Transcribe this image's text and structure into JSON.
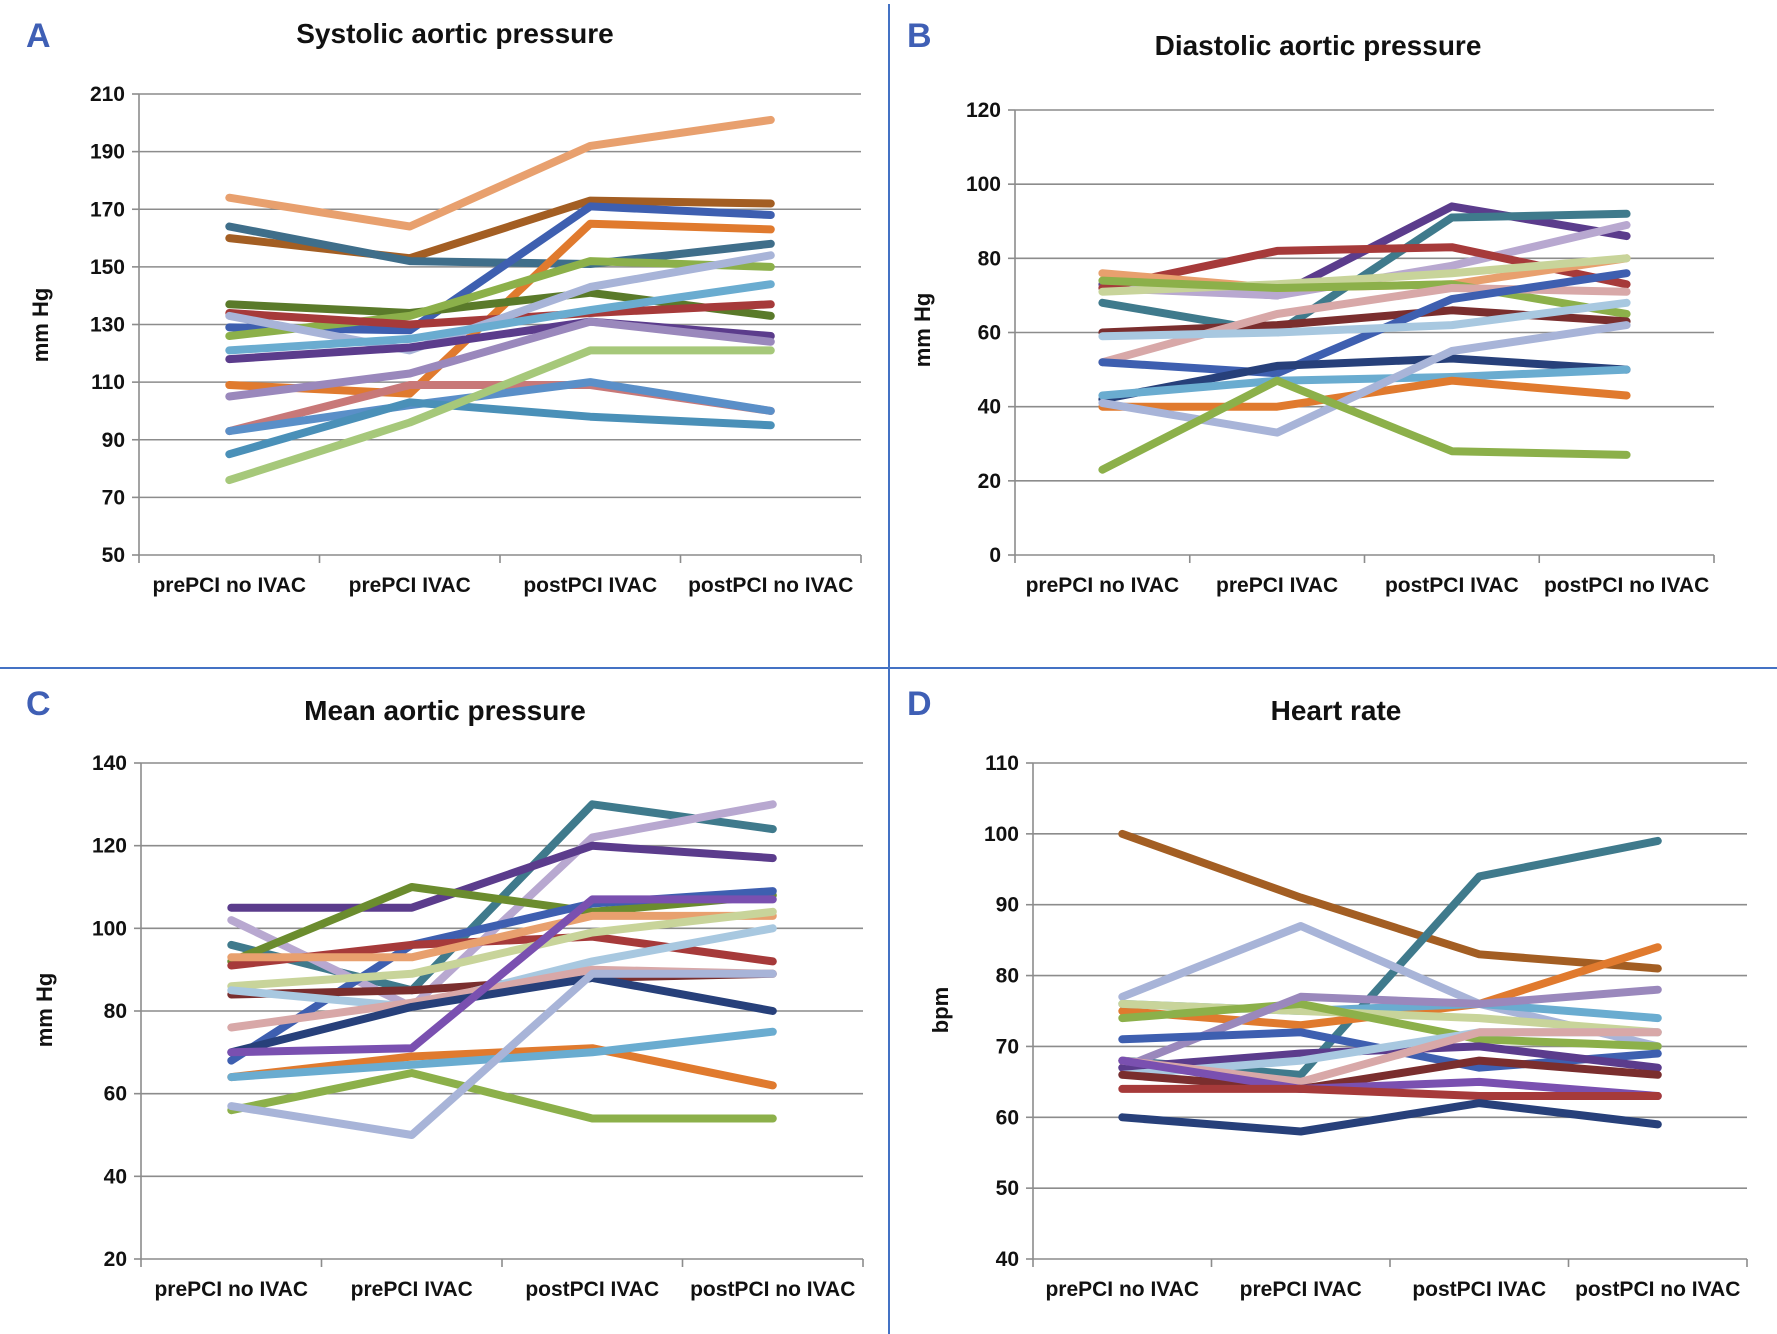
{
  "chart_data": [
    {
      "type": "line",
      "panel": "A",
      "title": "Systolic aortic pressure",
      "ylabel": "mm Hg",
      "xlabel": "",
      "categories": [
        "prePCI no IVAC",
        "prePCI IVAC",
        "postPCI IVAC",
        "postPCI no IVAC"
      ],
      "ylim": [
        50,
        210
      ],
      "yticks": [
        50,
        70,
        90,
        110,
        130,
        150,
        170,
        190,
        210
      ],
      "grid": true,
      "series": [
        {
          "color": "#e8a06e",
          "values": [
            174,
            164,
            192,
            201
          ]
        },
        {
          "color": "#a35e23",
          "values": [
            160,
            153,
            173,
            172
          ]
        },
        {
          "color": "#3f6e8a",
          "values": [
            164,
            152,
            151,
            158
          ]
        },
        {
          "color": "#3e5fb0",
          "values": [
            129,
            128,
            171,
            168
          ]
        },
        {
          "color": "#e07a2e",
          "values": [
            109,
            106,
            165,
            163
          ]
        },
        {
          "color": "#5a7a2a",
          "values": [
            137,
            134,
            141,
            133
          ]
        },
        {
          "color": "#8cb04a",
          "values": [
            126,
            133,
            152,
            150
          ]
        },
        {
          "color": "#a63a3a",
          "values": [
            134,
            130,
            134,
            137
          ]
        },
        {
          "color": "#a8b4d8",
          "values": [
            133,
            121,
            143,
            154
          ]
        },
        {
          "color": "#6aacd0",
          "values": [
            121,
            125,
            135,
            144
          ]
        },
        {
          "color": "#5b3c8c",
          "values": [
            118,
            122,
            131,
            126
          ]
        },
        {
          "color": "#9a88bc",
          "values": [
            105,
            113,
            131,
            124
          ]
        },
        {
          "color": "#c87878",
          "values": [
            93,
            109,
            109,
            100
          ]
        },
        {
          "color": "#5a8fc8",
          "values": [
            93,
            102,
            110,
            100
          ]
        },
        {
          "color": "#4a90b8",
          "values": [
            85,
            103,
            98,
            95
          ]
        },
        {
          "color": "#a6c87a",
          "values": [
            76,
            96,
            121,
            121
          ]
        }
      ]
    },
    {
      "type": "line",
      "panel": "B",
      "title": "Diastolic aortic pressure",
      "ylabel": "mm Hg",
      "xlabel": "",
      "categories": [
        "prePCI no IVAC",
        "prePCI IVAC",
        "postPCI IVAC",
        "postPCI no IVAC"
      ],
      "ylim": [
        0,
        120
      ],
      "yticks": [
        0,
        20,
        40,
        60,
        80,
        100,
        120
      ],
      "grid": true,
      "series": [
        {
          "color": "#5b3c8c",
          "values": [
            73,
            70,
            94,
            86
          ]
        },
        {
          "color": "#3f7a8c",
          "values": [
            68,
            60,
            91,
            92
          ]
        },
        {
          "color": "#b8a8d0",
          "values": [
            72,
            70,
            78,
            89
          ]
        },
        {
          "color": "#a63a3a",
          "values": [
            72,
            82,
            83,
            73
          ]
        },
        {
          "color": "#e8a06e",
          "values": [
            76,
            72,
            73,
            80
          ]
        },
        {
          "color": "#c8d49a",
          "values": [
            71,
            73,
            76,
            80
          ]
        },
        {
          "color": "#8cb04a",
          "values": [
            74,
            72,
            73,
            65
          ]
        },
        {
          "color": "#7a2e2e",
          "values": [
            60,
            62,
            66,
            63
          ]
        },
        {
          "color": "#d8a8a8",
          "values": [
            52,
            65,
            72,
            71
          ]
        },
        {
          "color": "#3e5fb0",
          "values": [
            52,
            49,
            69,
            76
          ]
        },
        {
          "color": "#a8c8e0",
          "values": [
            59,
            60,
            62,
            68
          ]
        },
        {
          "color": "#27407a",
          "values": [
            42,
            51,
            53,
            50
          ]
        },
        {
          "color": "#6aacd0",
          "values": [
            43,
            47,
            48,
            50
          ]
        },
        {
          "color": "#e07a2e",
          "values": [
            40,
            40,
            47,
            43
          ]
        },
        {
          "color": "#a8b4d8",
          "values": [
            41,
            33,
            55,
            62
          ]
        },
        {
          "color": "#8cb04a",
          "values": [
            23,
            47,
            28,
            27
          ]
        }
      ]
    },
    {
      "type": "line",
      "panel": "C",
      "title": "Mean aortic pressure",
      "ylabel": "mm Hg",
      "xlabel": "",
      "categories": [
        "prePCI no IVAC",
        "prePCI IVAC",
        "postPCI IVAC",
        "postPCI no IVAC"
      ],
      "ylim": [
        20,
        140
      ],
      "yticks": [
        20,
        40,
        60,
        80,
        100,
        120,
        140
      ],
      "grid": true,
      "series": [
        {
          "color": "#3f7a8c",
          "values": [
            96,
            85,
            130,
            124
          ]
        },
        {
          "color": "#b8a8d0",
          "values": [
            102,
            81,
            122,
            130
          ]
        },
        {
          "color": "#5b3c8c",
          "values": [
            105,
            105,
            120,
            117
          ]
        },
        {
          "color": "#6b8c2e",
          "values": [
            92,
            110,
            104,
            108
          ]
        },
        {
          "color": "#3e5fb0",
          "values": [
            68,
            96,
            106,
            109
          ]
        },
        {
          "color": "#a63a3a",
          "values": [
            91,
            96,
            98,
            92
          ]
        },
        {
          "color": "#e8a06e",
          "values": [
            93,
            93,
            103,
            103
          ]
        },
        {
          "color": "#c8d49a",
          "values": [
            86,
            89,
            99,
            104
          ]
        },
        {
          "color": "#7a2e2e",
          "values": [
            84,
            85,
            88,
            89
          ]
        },
        {
          "color": "#a8c8e0",
          "values": [
            85,
            81,
            92,
            100
          ]
        },
        {
          "color": "#d8a8a8",
          "values": [
            76,
            82,
            90,
            89
          ]
        },
        {
          "color": "#27407a",
          "values": [
            70,
            81,
            88,
            80
          ]
        },
        {
          "color": "#7a50b0",
          "values": [
            70,
            71,
            107,
            107
          ]
        },
        {
          "color": "#e07a2e",
          "values": [
            64,
            69,
            71,
            62
          ]
        },
        {
          "color": "#6aacd0",
          "values": [
            64,
            67,
            70,
            75
          ]
        },
        {
          "color": "#8cb04a",
          "values": [
            56,
            65,
            54,
            54
          ]
        },
        {
          "color": "#a8b4d8",
          "values": [
            57,
            50,
            89,
            89
          ]
        }
      ]
    },
    {
      "type": "line",
      "panel": "D",
      "title": "Heart rate",
      "ylabel": "bpm",
      "xlabel": "",
      "categories": [
        "prePCI no IVAC",
        "prePCI IVAC",
        "postPCI IVAC",
        "postPCI no IVAC"
      ],
      "ylim": [
        40,
        110
      ],
      "yticks": [
        40,
        50,
        60,
        70,
        80,
        90,
        100,
        110
      ],
      "grid": true,
      "series": [
        {
          "color": "#a35e23",
          "values": [
            100,
            91,
            83,
            81
          ]
        },
        {
          "color": "#3f7a8c",
          "values": [
            68,
            66,
            94,
            99
          ]
        },
        {
          "color": "#a8b4d8",
          "values": [
            77,
            87,
            76,
            70
          ]
        },
        {
          "color": "#e07a2e",
          "values": [
            75,
            73,
            76,
            84
          ]
        },
        {
          "color": "#6aacd0",
          "values": [
            76,
            75,
            76,
            74
          ]
        },
        {
          "color": "#c8d49a",
          "values": [
            76,
            75,
            74,
            72
          ]
        },
        {
          "color": "#8cb04a",
          "values": [
            74,
            76,
            71,
            70
          ]
        },
        {
          "color": "#9a88bc",
          "values": [
            67,
            77,
            76,
            78
          ]
        },
        {
          "color": "#3e5fb0",
          "values": [
            71,
            72,
            67,
            69
          ]
        },
        {
          "color": "#5b3c8c",
          "values": [
            67,
            69,
            70,
            67
          ]
        },
        {
          "color": "#a8c8e0",
          "values": [
            66,
            68,
            72,
            72
          ]
        },
        {
          "color": "#d8a8a8",
          "values": [
            68,
            65,
            72,
            72
          ]
        },
        {
          "color": "#7a2e2e",
          "values": [
            66,
            64,
            68,
            66
          ]
        },
        {
          "color": "#7a50b0",
          "values": [
            68,
            64,
            65,
            63
          ]
        },
        {
          "color": "#a63a3a",
          "values": [
            64,
            64,
            63,
            63
          ]
        },
        {
          "color": "#27407a",
          "values": [
            60,
            58,
            62,
            59
          ]
        }
      ]
    }
  ]
}
